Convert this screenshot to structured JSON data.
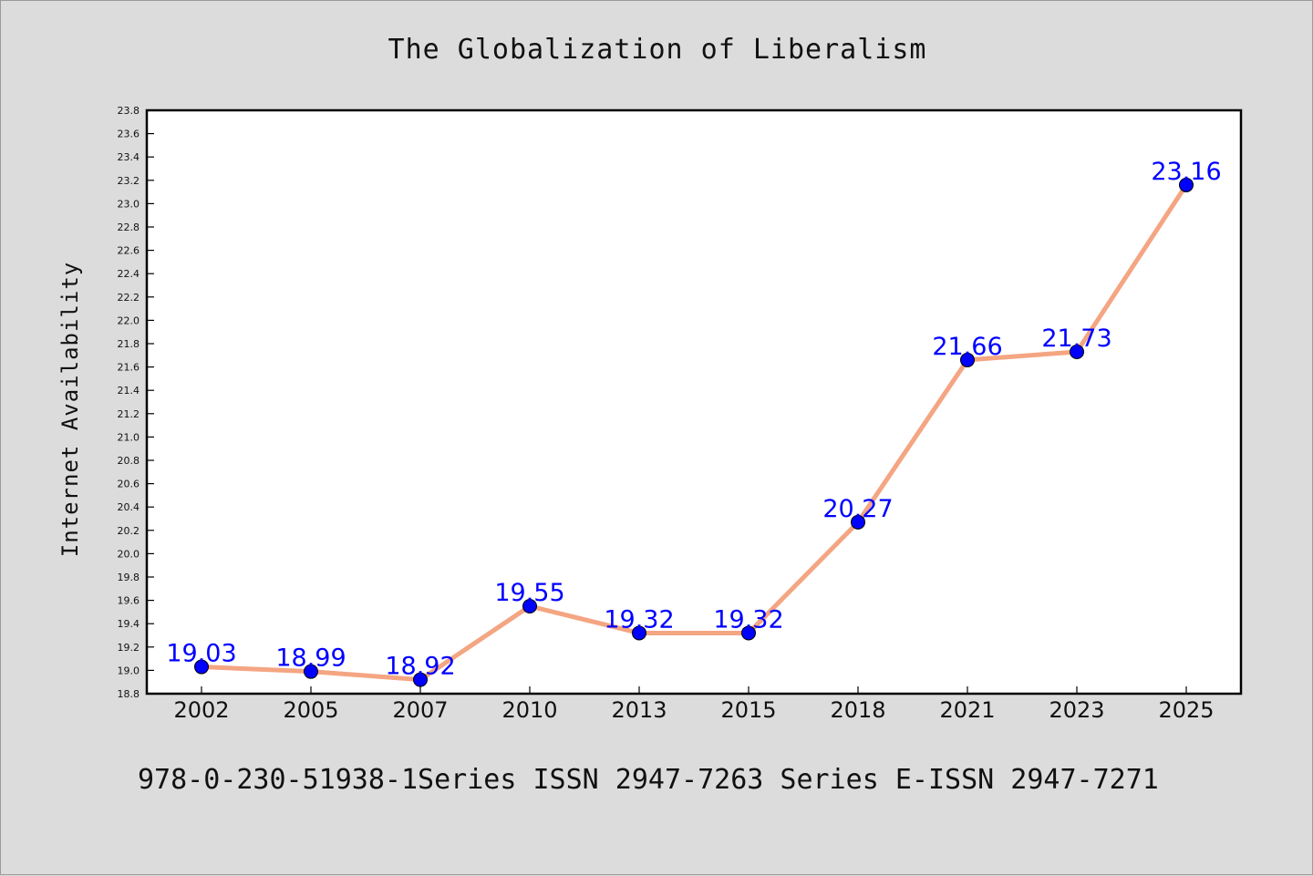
{
  "chart_data": {
    "type": "line",
    "title": "The Globalization of Liberalism",
    "xlabel": "",
    "ylabel": "Internet Availability",
    "categories": [
      "2002",
      "2005",
      "2007",
      "2010",
      "2013",
      "2015",
      "2018",
      "2021",
      "2023",
      "2025"
    ],
    "series": [
      {
        "values": [
          19.03,
          18.99,
          18.92,
          19.55,
          19.32,
          19.32,
          20.27,
          21.66,
          21.73,
          23.16
        ],
        "labels": [
          "19.03",
          "18.99",
          "18.92",
          "19.55",
          "19.32",
          "19.32",
          "20.27",
          "21.66",
          "21.73",
          "23.16"
        ]
      }
    ],
    "ylim": [
      18.8,
      23.8
    ],
    "yticks": [
      "18.8",
      "19.0",
      "19.2",
      "19.4",
      "19.6",
      "19.8",
      "20.0",
      "20.2",
      "20.4",
      "20.6",
      "20.8",
      "21.0",
      "21.2",
      "21.4",
      "21.6",
      "21.8",
      "22.0",
      "22.2",
      "22.4",
      "22.6",
      "22.8",
      "23.0",
      "23.2",
      "23.4",
      "23.6",
      "23.8"
    ],
    "grid": false,
    "line_color": "#f4a582",
    "marker_color": "#0000ff",
    "label_color": "#0000ff"
  },
  "footer": "978-0-230-51938-1Series ISSN 2947-7263 Series E-ISSN 2947-7271"
}
